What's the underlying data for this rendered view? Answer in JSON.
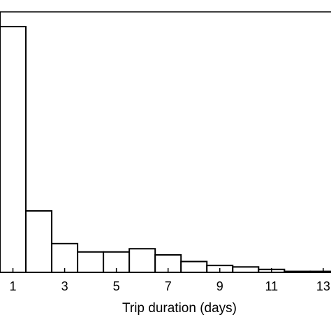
{
  "chart_data": {
    "type": "bar",
    "title": "",
    "xlabel": "Trip duration (days)",
    "ylabel": "",
    "x_ticks": [
      1,
      3,
      5,
      7,
      9,
      11,
      13
    ],
    "bin_width": 1,
    "bins": [
      {
        "start": 0.5,
        "value": 100
      },
      {
        "start": 1.5,
        "value": 25
      },
      {
        "start": 2.5,
        "value": 11.7
      },
      {
        "start": 3.5,
        "value": 8.3
      },
      {
        "start": 4.5,
        "value": 8.3
      },
      {
        "start": 5.5,
        "value": 9.6
      },
      {
        "start": 6.5,
        "value": 7.1
      },
      {
        "start": 7.5,
        "value": 4.4
      },
      {
        "start": 8.5,
        "value": 2.8
      },
      {
        "start": 9.5,
        "value": 2.2
      },
      {
        "start": 10.5,
        "value": 1.2
      },
      {
        "start": 11.5,
        "value": 0.4
      },
      {
        "start": 12.5,
        "value": 0.4
      }
    ],
    "xlim": [
      0.5,
      13.3
    ],
    "ylim": [
      0,
      106
    ],
    "grid": false
  }
}
